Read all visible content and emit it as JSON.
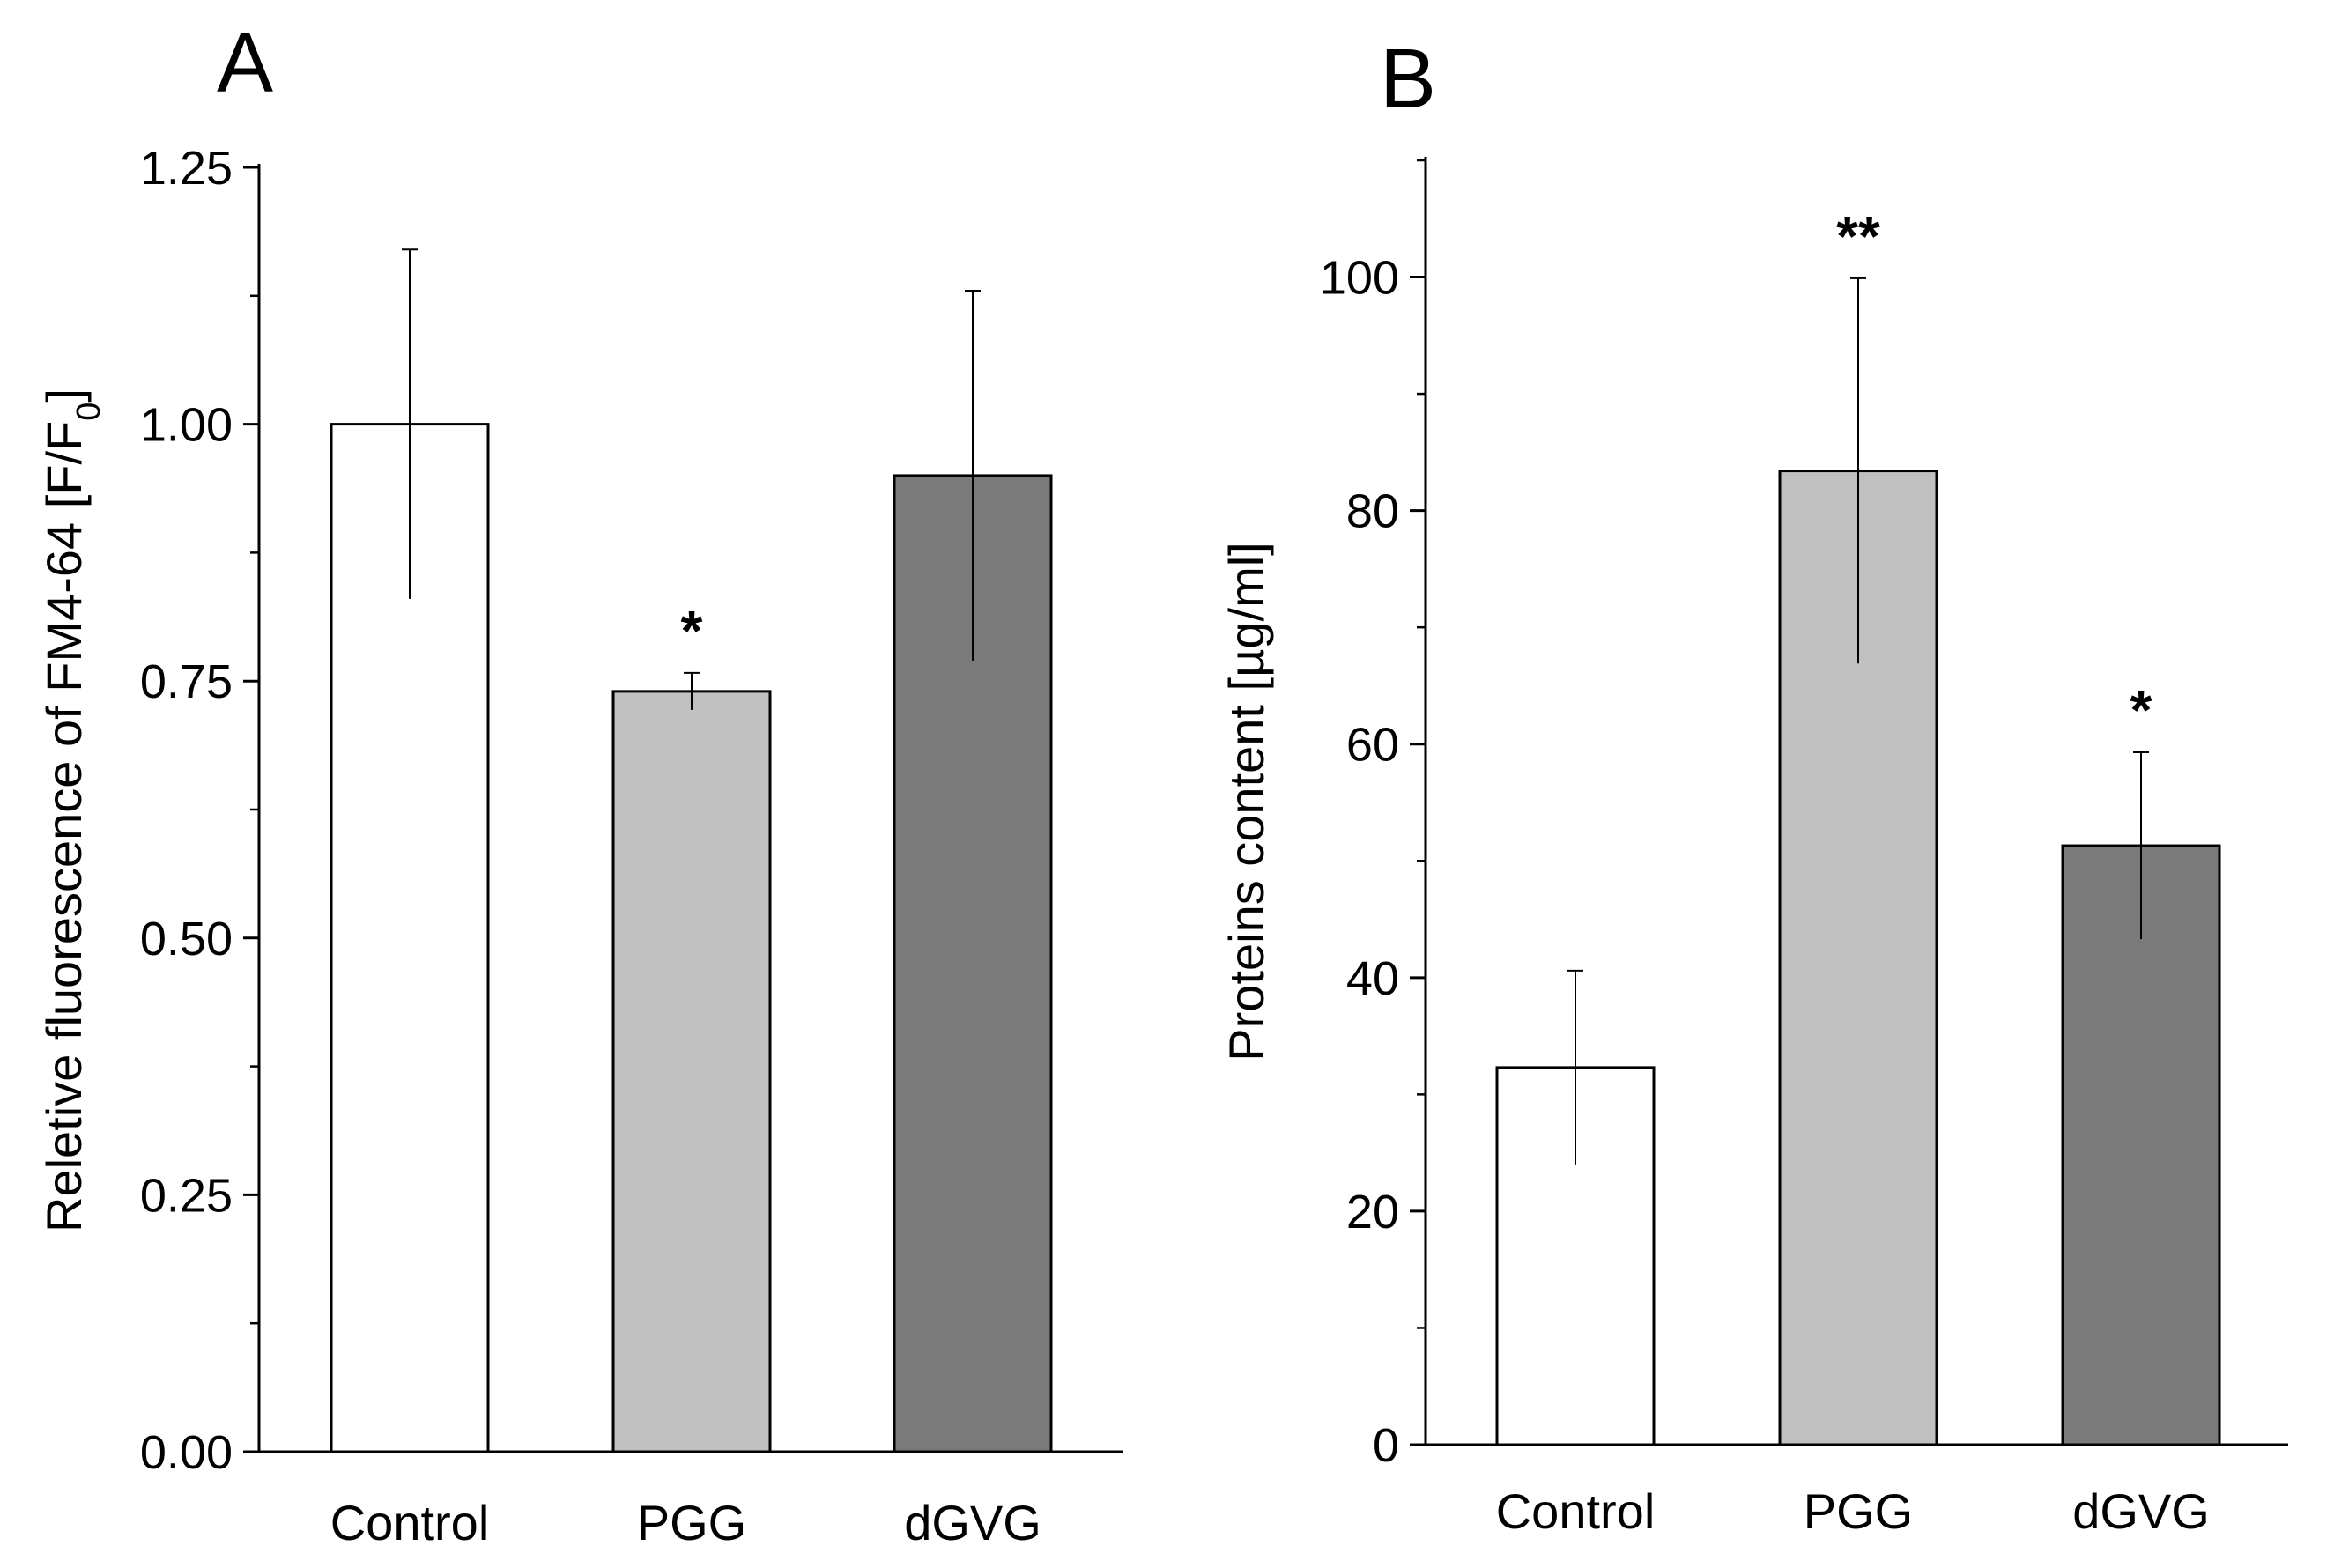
{
  "chart_data": [
    {
      "panel": "A",
      "type": "bar",
      "ylabel": "Reletive fluorescence of FM4-64 [F/F",
      "ylabel_sub": "0",
      "ylabel_close": "]",
      "xlabel": "",
      "ylim": [
        0,
        1.25
      ],
      "yticks": [
        0,
        0.25,
        0.5,
        0.75,
        1.0,
        1.25
      ],
      "ytick_labels": [
        "0.00",
        "0.25",
        "0.50",
        "0.75",
        "1.00",
        "1.25"
      ],
      "categories": [
        "Control",
        "PGG",
        "dGVG"
      ],
      "values": [
        1.0,
        0.74,
        0.95
      ],
      "errors": [
        0.17,
        0.018,
        0.18
      ],
      "significance": [
        "",
        "*",
        ""
      ],
      "bar_colors": [
        "#ffffff",
        "#c0c0c0",
        "#7a7a7a"
      ],
      "grid": false
    },
    {
      "panel": "B",
      "type": "bar",
      "ylabel": "Proteins content [µg/ml]",
      "xlabel": "",
      "ylim": [
        0,
        110
      ],
      "yticks": [
        0,
        20,
        40,
        60,
        80,
        100
      ],
      "ytick_labels": [
        "0",
        "20",
        "40",
        "60",
        "80",
        "100"
      ],
      "categories": [
        "Control",
        "PGG",
        "dGVG"
      ],
      "values": [
        32.3,
        83.4,
        51.3
      ],
      "errors": [
        8.3,
        16.5,
        8.0
      ],
      "significance": [
        "",
        "**",
        "*"
      ],
      "bar_colors": [
        "#ffffff",
        "#c0c0c0",
        "#7a7a7a"
      ],
      "grid": false
    }
  ]
}
